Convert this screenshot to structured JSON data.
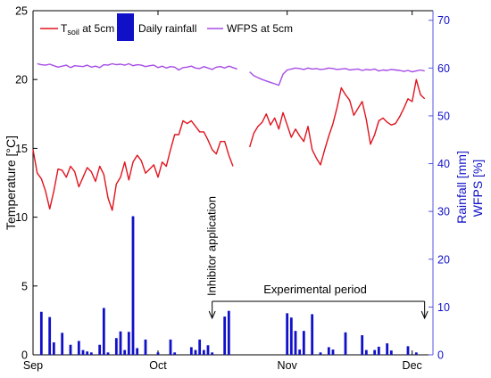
{
  "chart_data": {
    "type": "line",
    "x_axis": {
      "unit": "day-of-year",
      "ticks": [
        {
          "doy": 244,
          "label": "Sep"
        },
        {
          "doy": 274,
          "label": "Oct"
        },
        {
          "doy": 305,
          "label": "Nov"
        },
        {
          "doy": 335,
          "label": "Dec"
        }
      ],
      "range": [
        244,
        340
      ]
    },
    "y_left": {
      "label": "Temperature [°C]",
      "range": [
        0,
        25
      ],
      "ticks": [
        "0",
        "5",
        "10",
        "15",
        "20",
        "25"
      ]
    },
    "y_right": {
      "label_rain": "Rainfall [mm]",
      "label_wfps": "WFPS [%]",
      "range": [
        0,
        72
      ],
      "ticks": [
        "0",
        "10",
        "20",
        "30",
        "40",
        "50",
        "60",
        "70"
      ]
    },
    "legend": {
      "tsoil_main": "T",
      "tsoil_sub": "soil",
      "tsoil_rest": " at 5cm",
      "rain": "Daily rainfall",
      "wfps": "WFPS at 5cm",
      "placement": "top"
    },
    "annotations": {
      "inhibitor": "Inhibitor application",
      "experimental": "Experimental period",
      "inhibitor_doy": 287,
      "period_start_doy": 287,
      "period_end_doy": 338
    },
    "colors": {
      "tsoil": "#e0141e",
      "rain": "#1010c8",
      "wfps": "#a64ce6",
      "right_axis": "#5555e0"
    },
    "series": [
      {
        "name": "T soil at 5cm",
        "axis": "left",
        "segments": [
          {
            "start_doy": 244,
            "values": [
              14.9,
              13.2,
              12.8,
              11.9,
              10.6,
              11.9,
              13.5,
              13.4,
              12.9,
              13.7,
              13.3,
              12.2,
              12.9,
              13.6,
              13.3,
              12.6,
              13.7,
              13.1,
              11.4,
              10.5,
              12.4,
              12.9,
              14.0,
              12.7,
              14.0,
              14.5,
              14.1,
              13.2,
              13.5,
              13.8,
              12.9,
              14.0,
              13.7,
              14.9,
              16.0,
              16.0,
              17.0,
              16.8,
              17.0,
              16.6,
              16.2,
              16.2,
              15.6,
              14.9,
              14.6,
              15.5,
              15.5,
              14.5,
              13.7
            ]
          },
          {
            "start_doy": 296,
            "values": [
              15.1,
              16.1,
              16.6,
              16.9,
              17.5,
              16.7,
              17.2,
              16.4,
              17.6,
              16.7,
              15.8,
              16.4,
              15.9,
              15.5,
              16.6,
              14.9,
              14.3,
              13.8,
              14.9,
              15.9,
              16.8,
              18.0,
              19.4,
              18.9,
              18.5,
              17.4,
              17.9,
              18.4,
              17.1,
              15.3,
              16.0,
              17.0,
              17.2,
              16.9,
              16.7,
              16.8,
              17.3,
              17.9,
              18.6,
              18.4,
              20.0,
              18.9,
              18.6
            ]
          }
        ]
      },
      {
        "name": "WFPS at 5cm",
        "axis": "right",
        "segments": [
          {
            "start_doy": 245,
            "values": [
              60.9,
              60.7,
              60.6,
              60.8,
              60.5,
              60.2,
              60.4,
              60.6,
              60.1,
              60.5,
              60.4,
              60.3,
              60.6,
              60.2,
              60.4,
              60.1,
              60.7,
              60.6,
              60.9,
              60.7,
              60.8,
              60.6,
              60.9,
              60.5,
              60.7,
              60.6,
              60.3,
              60.5,
              60.6,
              60.1,
              60.4,
              60.0,
              60.3,
              60.2,
              59.6,
              60.1,
              60.2,
              60.4,
              60.0,
              59.9,
              60.3,
              60.0,
              59.7,
              60.2,
              60.3,
              60.0,
              60.4,
              60.1,
              59.8
            ]
          },
          {
            "start_doy": 296,
            "values": [
              59.2,
              58.4,
              58.0,
              57.6,
              57.3,
              57.0,
              56.7,
              56.4,
              58.7,
              59.6,
              59.8,
              60.0,
              59.9,
              59.7,
              60.0,
              59.8,
              59.9,
              59.7,
              59.8,
              60.0,
              59.9,
              59.7,
              59.8,
              59.9,
              59.6,
              59.7,
              59.8,
              59.5,
              59.7,
              59.6,
              59.8,
              59.4,
              59.6,
              59.5,
              59.7,
              59.6,
              59.5,
              59.3,
              59.5,
              59.2,
              59.4,
              59.6,
              59.4
            ]
          }
        ]
      },
      {
        "name": "Daily rainfall",
        "axis": "right",
        "type": "bar",
        "points": [
          [
            246,
            9.0
          ],
          [
            248,
            7.9
          ],
          [
            249,
            2.6
          ],
          [
            251,
            4.6
          ],
          [
            253,
            2.1
          ],
          [
            255,
            2.9
          ],
          [
            256,
            1.0
          ],
          [
            257,
            0.7
          ],
          [
            258,
            0.5
          ],
          [
            260,
            2.1
          ],
          [
            261,
            9.8
          ],
          [
            262,
            0.5
          ],
          [
            264,
            3.5
          ],
          [
            265,
            4.9
          ],
          [
            266,
            1.0
          ],
          [
            267,
            4.8
          ],
          [
            268,
            29.0
          ],
          [
            269,
            1.4
          ],
          [
            271,
            3.2
          ],
          [
            274,
            0.5
          ],
          [
            277,
            3.2
          ],
          [
            278,
            0.5
          ],
          [
            282,
            1.6
          ],
          [
            283,
            1.0
          ],
          [
            284,
            3.2
          ],
          [
            285,
            1.0
          ],
          [
            286,
            2.0
          ],
          [
            287,
            0.5
          ],
          [
            290,
            8.0
          ],
          [
            291,
            9.2
          ],
          [
            305,
            8.7
          ],
          [
            306,
            7.8
          ],
          [
            307,
            5.0
          ],
          [
            308,
            1.1
          ],
          [
            309,
            5.0
          ],
          [
            311,
            8.5
          ],
          [
            313,
            0.5
          ],
          [
            315,
            1.6
          ],
          [
            316,
            1.1
          ],
          [
            319,
            4.7
          ],
          [
            323,
            4.1
          ],
          [
            324,
            1.0
          ],
          [
            326,
            1.0
          ],
          [
            327,
            1.7
          ],
          [
            329,
            2.4
          ],
          [
            330,
            0.9
          ],
          [
            334,
            1.8
          ],
          [
            336,
            0.5
          ]
        ]
      }
    ]
  }
}
